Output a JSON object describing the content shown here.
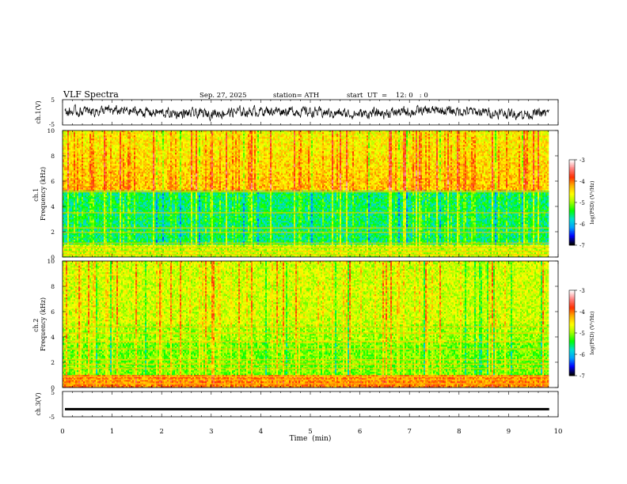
{
  "header": {
    "title": "VLF  Spectra",
    "date": "Sep. 27, 2025",
    "station": "station= ATH",
    "start_ut": "start  UT  =    12: 0   : 0"
  },
  "colors": {
    "scale": [
      "#000000",
      "#0000ff",
      "#00a0ff",
      "#00e0d0",
      "#00ff00",
      "#a0ff00",
      "#ffff00",
      "#ffb000",
      "#ff3000",
      "#ff8080",
      "#ffffff"
    ],
    "trace": "#000000",
    "frame": "#000000"
  },
  "chart_data": [
    {
      "type": "line",
      "panel": "ch1-waveform",
      "ylabel": "ch.1(V)",
      "ylim": [
        -5,
        5
      ],
      "yticks": [
        "5",
        "-5"
      ],
      "xlim": [
        0,
        10
      ]
    },
    {
      "type": "heatmap",
      "panel": "ch1-spectrogram",
      "ylabel": "ch.1\nFrequency  (kHz)",
      "ylabel_lines": [
        "ch.1",
        "Frequency  (kHz)"
      ],
      "ylim": [
        0,
        10
      ],
      "yticks": [
        "0",
        "2",
        "4",
        "6",
        "8",
        "10"
      ],
      "xlim": [
        0,
        10
      ],
      "colorbar": {
        "label": "log(PSD) (V²/Hz)",
        "range": [
          -7,
          -3
        ],
        "ticks": [
          "-3",
          "-4",
          "-5",
          "-6",
          "-7"
        ]
      }
    },
    {
      "type": "heatmap",
      "panel": "ch2-spectrogram",
      "ylabel": "ch.2\nFrequency  (kHz)",
      "ylabel_lines": [
        "ch.2",
        "Frequency  (kHz)"
      ],
      "ylim": [
        0,
        10
      ],
      "yticks": [
        "0",
        "2",
        "4",
        "6",
        "8",
        "10"
      ],
      "xlim": [
        0,
        10
      ],
      "colorbar": {
        "label": "log(PSD) (V²/Hz)",
        "range": [
          -7,
          -3
        ],
        "ticks": [
          "-3",
          "-4",
          "-5",
          "-6",
          "-7"
        ]
      }
    },
    {
      "type": "line",
      "panel": "ch3-waveform",
      "ylabel": "ch.3(V)",
      "ylim": [
        -5,
        5
      ],
      "yticks": [
        "5",
        "-5"
      ],
      "xlim": [
        0,
        10
      ],
      "level": -2
    }
  ],
  "xaxis": {
    "label": "Time  (min)",
    "ticks": [
      "0",
      "1",
      "2",
      "3",
      "4",
      "5",
      "6",
      "7",
      "8",
      "9",
      "10"
    ],
    "data_end": 9.82
  }
}
